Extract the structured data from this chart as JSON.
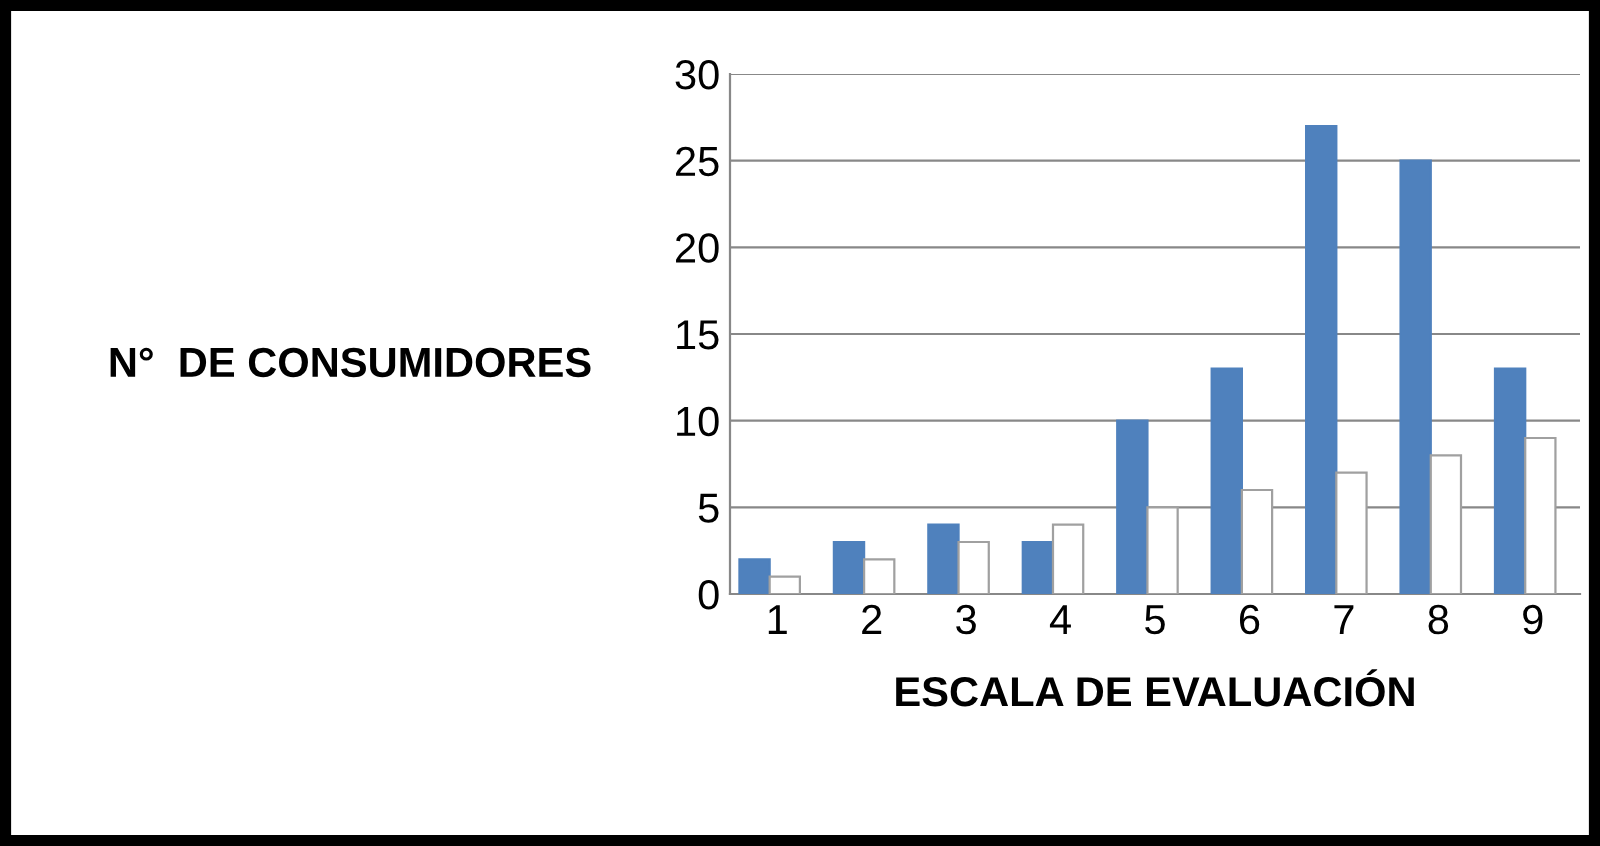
{
  "chart_data": {
    "type": "bar",
    "xlabel": "ESCALA DE EVALUACIÓN",
    "ylabel": "N°  DE CONSUMIDORES",
    "categories": [
      "1",
      "2",
      "3",
      "4",
      "5",
      "6",
      "7",
      "8",
      "9"
    ],
    "series": [
      {
        "color": "#4f81bd",
        "values": [
          2,
          3,
          4,
          3,
          10,
          13,
          27,
          25,
          13
        ]
      },
      {
        "color": "#ffffff",
        "values": [
          1,
          2,
          3,
          4,
          5,
          6,
          7,
          8,
          9
        ]
      }
    ],
    "ylim": [
      0,
      30
    ],
    "yticks": [
      0,
      5,
      10,
      15,
      20,
      25,
      30
    ],
    "grid": "y",
    "legend": false
  }
}
